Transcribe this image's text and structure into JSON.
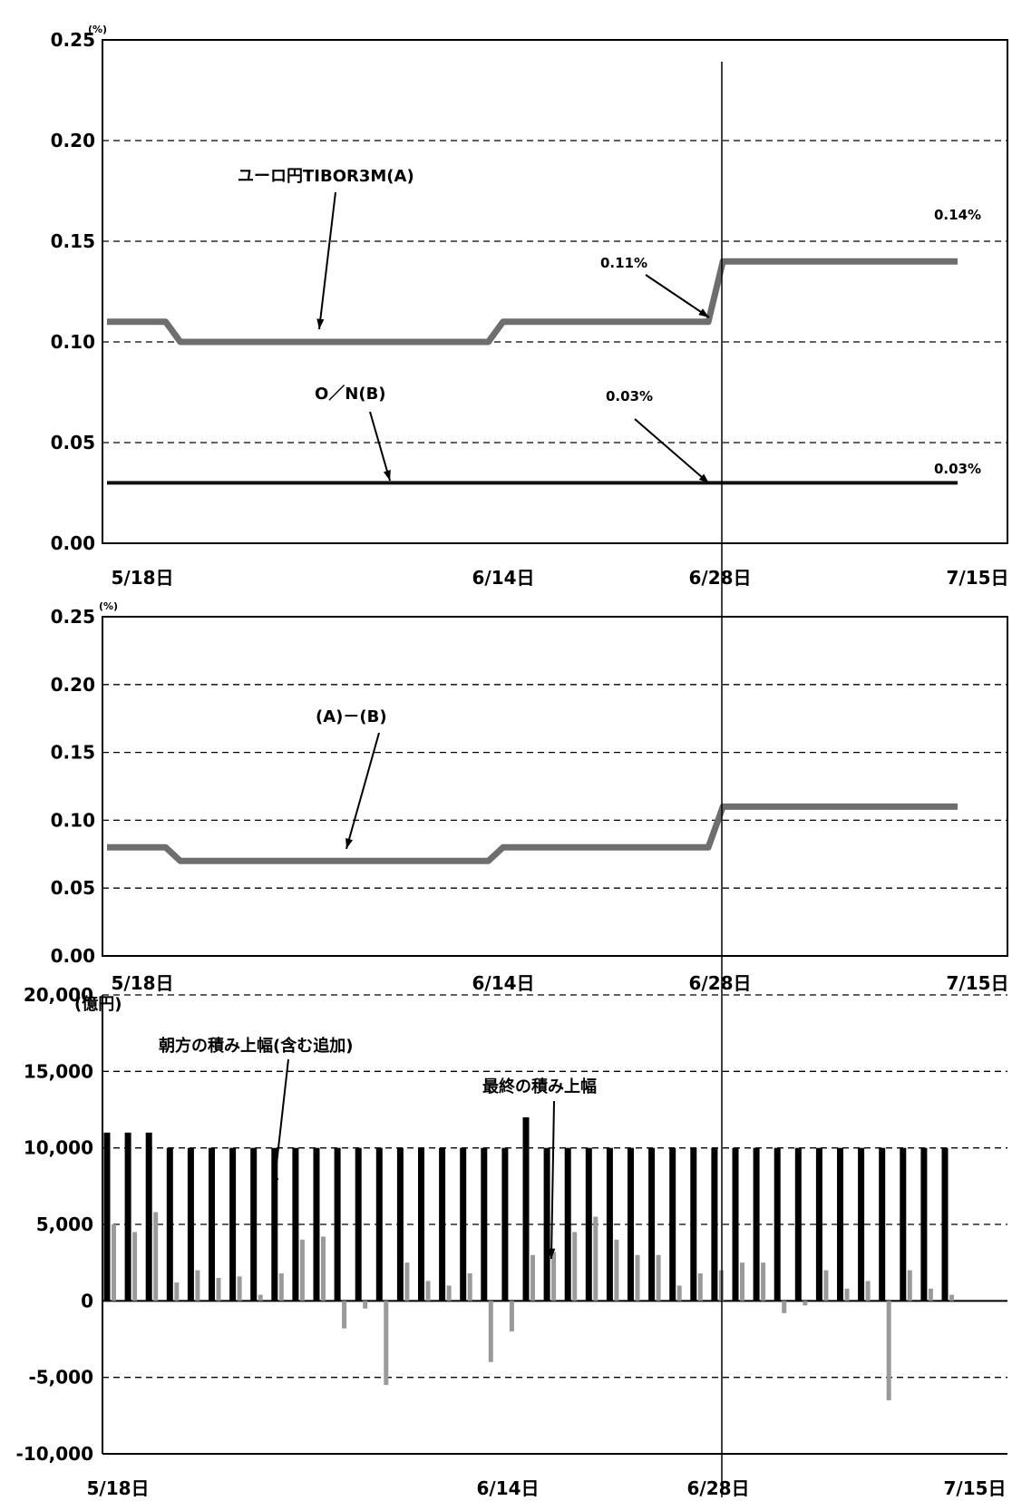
{
  "chart_data": [
    {
      "type": "line",
      "unit": "(%)",
      "ylim": [
        0,
        0.25
      ],
      "y_ticks": [
        "0.25",
        "0.20",
        "0.15",
        "0.10",
        "0.05",
        "0.00"
      ],
      "x_tick_labels": [
        "5/18日",
        "6/14日",
        "6/28日",
        "7/15日"
      ],
      "grid": true,
      "series": [
        {
          "name": "ユーロ円TIBOR3M(A)",
          "points": [
            {
              "x": "5/18",
              "y": 0.11
            },
            {
              "x": "5/22",
              "y": 0.11
            },
            {
              "x": "5/23",
              "y": 0.1
            },
            {
              "x": "6/13",
              "y": 0.1
            },
            {
              "x": "6/14",
              "y": 0.11
            },
            {
              "x": "6/28",
              "y": 0.11
            },
            {
              "x": "6/29",
              "y": 0.14
            },
            {
              "x": "7/15",
              "y": 0.14
            }
          ]
        },
        {
          "name": "O/N(B)",
          "points": [
            {
              "x": "5/18",
              "y": 0.03
            },
            {
              "x": "7/15",
              "y": 0.03
            }
          ]
        }
      ],
      "annotations": [
        "0.14%",
        "0.11%",
        "0.03%",
        "0.03%"
      ]
    },
    {
      "type": "line",
      "unit": "(%)",
      "ylim": [
        0,
        0.25
      ],
      "y_ticks": [
        "0.25",
        "0.20",
        "0.15",
        "0.10",
        "0.05",
        "0.00"
      ],
      "x_tick_labels": [
        "5/18日",
        "6/14日",
        "6/28日",
        "7/15日"
      ],
      "grid": true,
      "series": [
        {
          "name": "(A)－(B)",
          "points": [
            {
              "x": "5/18",
              "y": 0.08
            },
            {
              "x": "5/22",
              "y": 0.08
            },
            {
              "x": "5/23",
              "y": 0.07
            },
            {
              "x": "6/13",
              "y": 0.07
            },
            {
              "x": "6/14",
              "y": 0.08
            },
            {
              "x": "6/28",
              "y": 0.08
            },
            {
              "x": "6/29",
              "y": 0.11
            },
            {
              "x": "7/15",
              "y": 0.11
            }
          ]
        }
      ]
    },
    {
      "type": "bar",
      "unit": "(億円)",
      "ylim": [
        -10000,
        20000
      ],
      "y_ticks": [
        "20,000",
        "15,000",
        "10,000",
        "5,000",
        "0",
        "-5,000",
        "-10,000"
      ],
      "x_tick_labels": [
        "5/18日",
        "6/14日",
        "6/28日",
        "7/15日"
      ],
      "grid": true,
      "series": [
        {
          "name": "朝方の積み上幅(含む追加)",
          "values": [
            11000,
            11000,
            11000,
            10000,
            10000,
            10000,
            10000,
            10000,
            10000,
            10000,
            10000,
            10000,
            10000,
            10000,
            10000,
            10000,
            10000,
            10000,
            10000,
            10000,
            12000,
            10000,
            10000,
            10000,
            10000,
            10000,
            10000,
            10000,
            10000,
            10000,
            10000,
            10000,
            10000,
            10000,
            10000,
            10000,
            10000,
            10000,
            10000,
            10000,
            10000
          ]
        },
        {
          "name": "最終の積み上幅",
          "values": [
            5000,
            4500,
            5800,
            1200,
            2000,
            1500,
            1600,
            400,
            1800,
            4000,
            4200,
            -1800,
            -500,
            -5500,
            2500,
            1300,
            1000,
            1800,
            -4000,
            -2000,
            3000,
            3200,
            4500,
            5500,
            4000,
            3000,
            3000,
            1000,
            1800,
            2000,
            2500,
            2500,
            -800,
            -300,
            2000,
            800,
            1300,
            -6500,
            2000,
            800,
            400
          ]
        }
      ]
    }
  ],
  "labels": {
    "tibor": "ユーロ円TIBOR3M(A)",
    "on": "O／N(B)",
    "diff": "(A)－(B)",
    "morning": "朝方の積み上幅(含む追加)",
    "final": "最終の積み上幅",
    "p014": "0.14%",
    "p011": "0.11%",
    "p003a": "0.03%",
    "p003b": "0.03%"
  }
}
